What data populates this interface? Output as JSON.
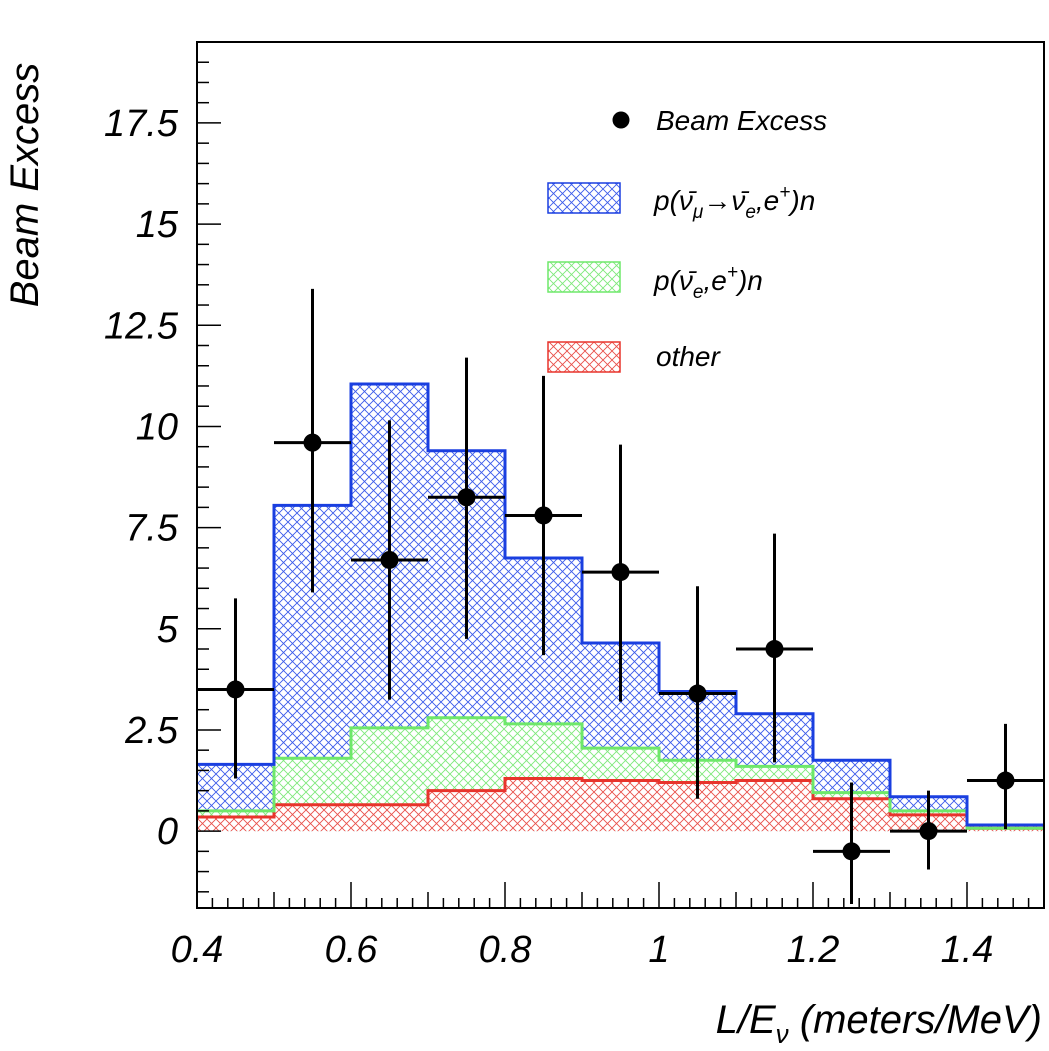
{
  "chart_data": {
    "type": "histogram",
    "xlabel": "L/E",
    "xlabel_subscript": "ν",
    "xlabel_units": " (meters/MeV)",
    "ylabel": "Beam Excess",
    "xlim": [
      0.4,
      1.5
    ],
    "ylim": [
      -1.9,
      19.5
    ],
    "xticks": [
      0.4,
      0.6,
      0.8,
      1,
      1.2,
      1.4
    ],
    "xtick_labels": [
      "0.4",
      "0.6",
      "0.8",
      "1",
      "1.2",
      "1.4"
    ],
    "yticks": [
      0,
      2.5,
      5,
      7.5,
      10,
      12.5,
      15,
      17.5
    ],
    "ytick_labels": [
      "0",
      "2.5",
      "5",
      "7.5",
      "10",
      "12.5",
      "15",
      "17.5"
    ],
    "bin_edges": [
      0.4,
      0.5,
      0.6,
      0.7,
      0.8,
      0.9,
      1.0,
      1.1,
      1.2,
      1.3,
      1.4,
      1.5
    ],
    "stack": [
      {
        "name": "other",
        "color": "#e8342c",
        "values": [
          0.35,
          0.65,
          0.65,
          1.0,
          1.3,
          1.25,
          1.2,
          1.25,
          0.8,
          0.4,
          0.07
        ]
      },
      {
        "name": "p(ν̄e,e+)n",
        "color": "#6ee86a",
        "values": [
          0.5,
          1.8,
          2.55,
          2.8,
          2.65,
          2.05,
          1.75,
          1.6,
          0.95,
          0.5,
          0.07
        ]
      },
      {
        "name": "p(ν̄μ→ν̄e,e+)n",
        "color": "#1a3fe0",
        "values": [
          1.65,
          8.05,
          11.05,
          9.4,
          6.75,
          4.65,
          3.45,
          2.9,
          1.75,
          0.85,
          0.15
        ]
      }
    ],
    "points": {
      "name": "Beam Excess",
      "x": [
        0.45,
        0.55,
        0.65,
        0.75,
        0.85,
        0.95,
        1.05,
        1.15,
        1.25,
        1.35,
        1.45
      ],
      "y": [
        3.5,
        9.6,
        6.7,
        8.25,
        7.8,
        6.4,
        3.4,
        4.5,
        -0.5,
        0.0,
        1.25
      ],
      "yerr_low": [
        2.2,
        3.7,
        3.45,
        3.5,
        3.45,
        3.2,
        2.6,
        2.8,
        1.3,
        0.95,
        1.2
      ],
      "yerr_high": [
        2.25,
        3.8,
        3.45,
        3.45,
        3.45,
        3.15,
        2.65,
        2.85,
        1.7,
        1.0,
        1.4
      ],
      "xerr": 0.05
    },
    "legend": {
      "placement": "top-right",
      "entries": [
        {
          "label": "Beam Excess",
          "kind": "marker"
        },
        {
          "label": "p(ν̄μ→ν̄e,e+)n",
          "kind": "patch",
          "series": "p(ν̄μ→ν̄e,e+)n"
        },
        {
          "label": "p(ν̄e,e+)n",
          "kind": "patch",
          "series": "p(ν̄e,e+)n"
        },
        {
          "label": "other",
          "kind": "patch",
          "series": "other"
        }
      ]
    }
  }
}
